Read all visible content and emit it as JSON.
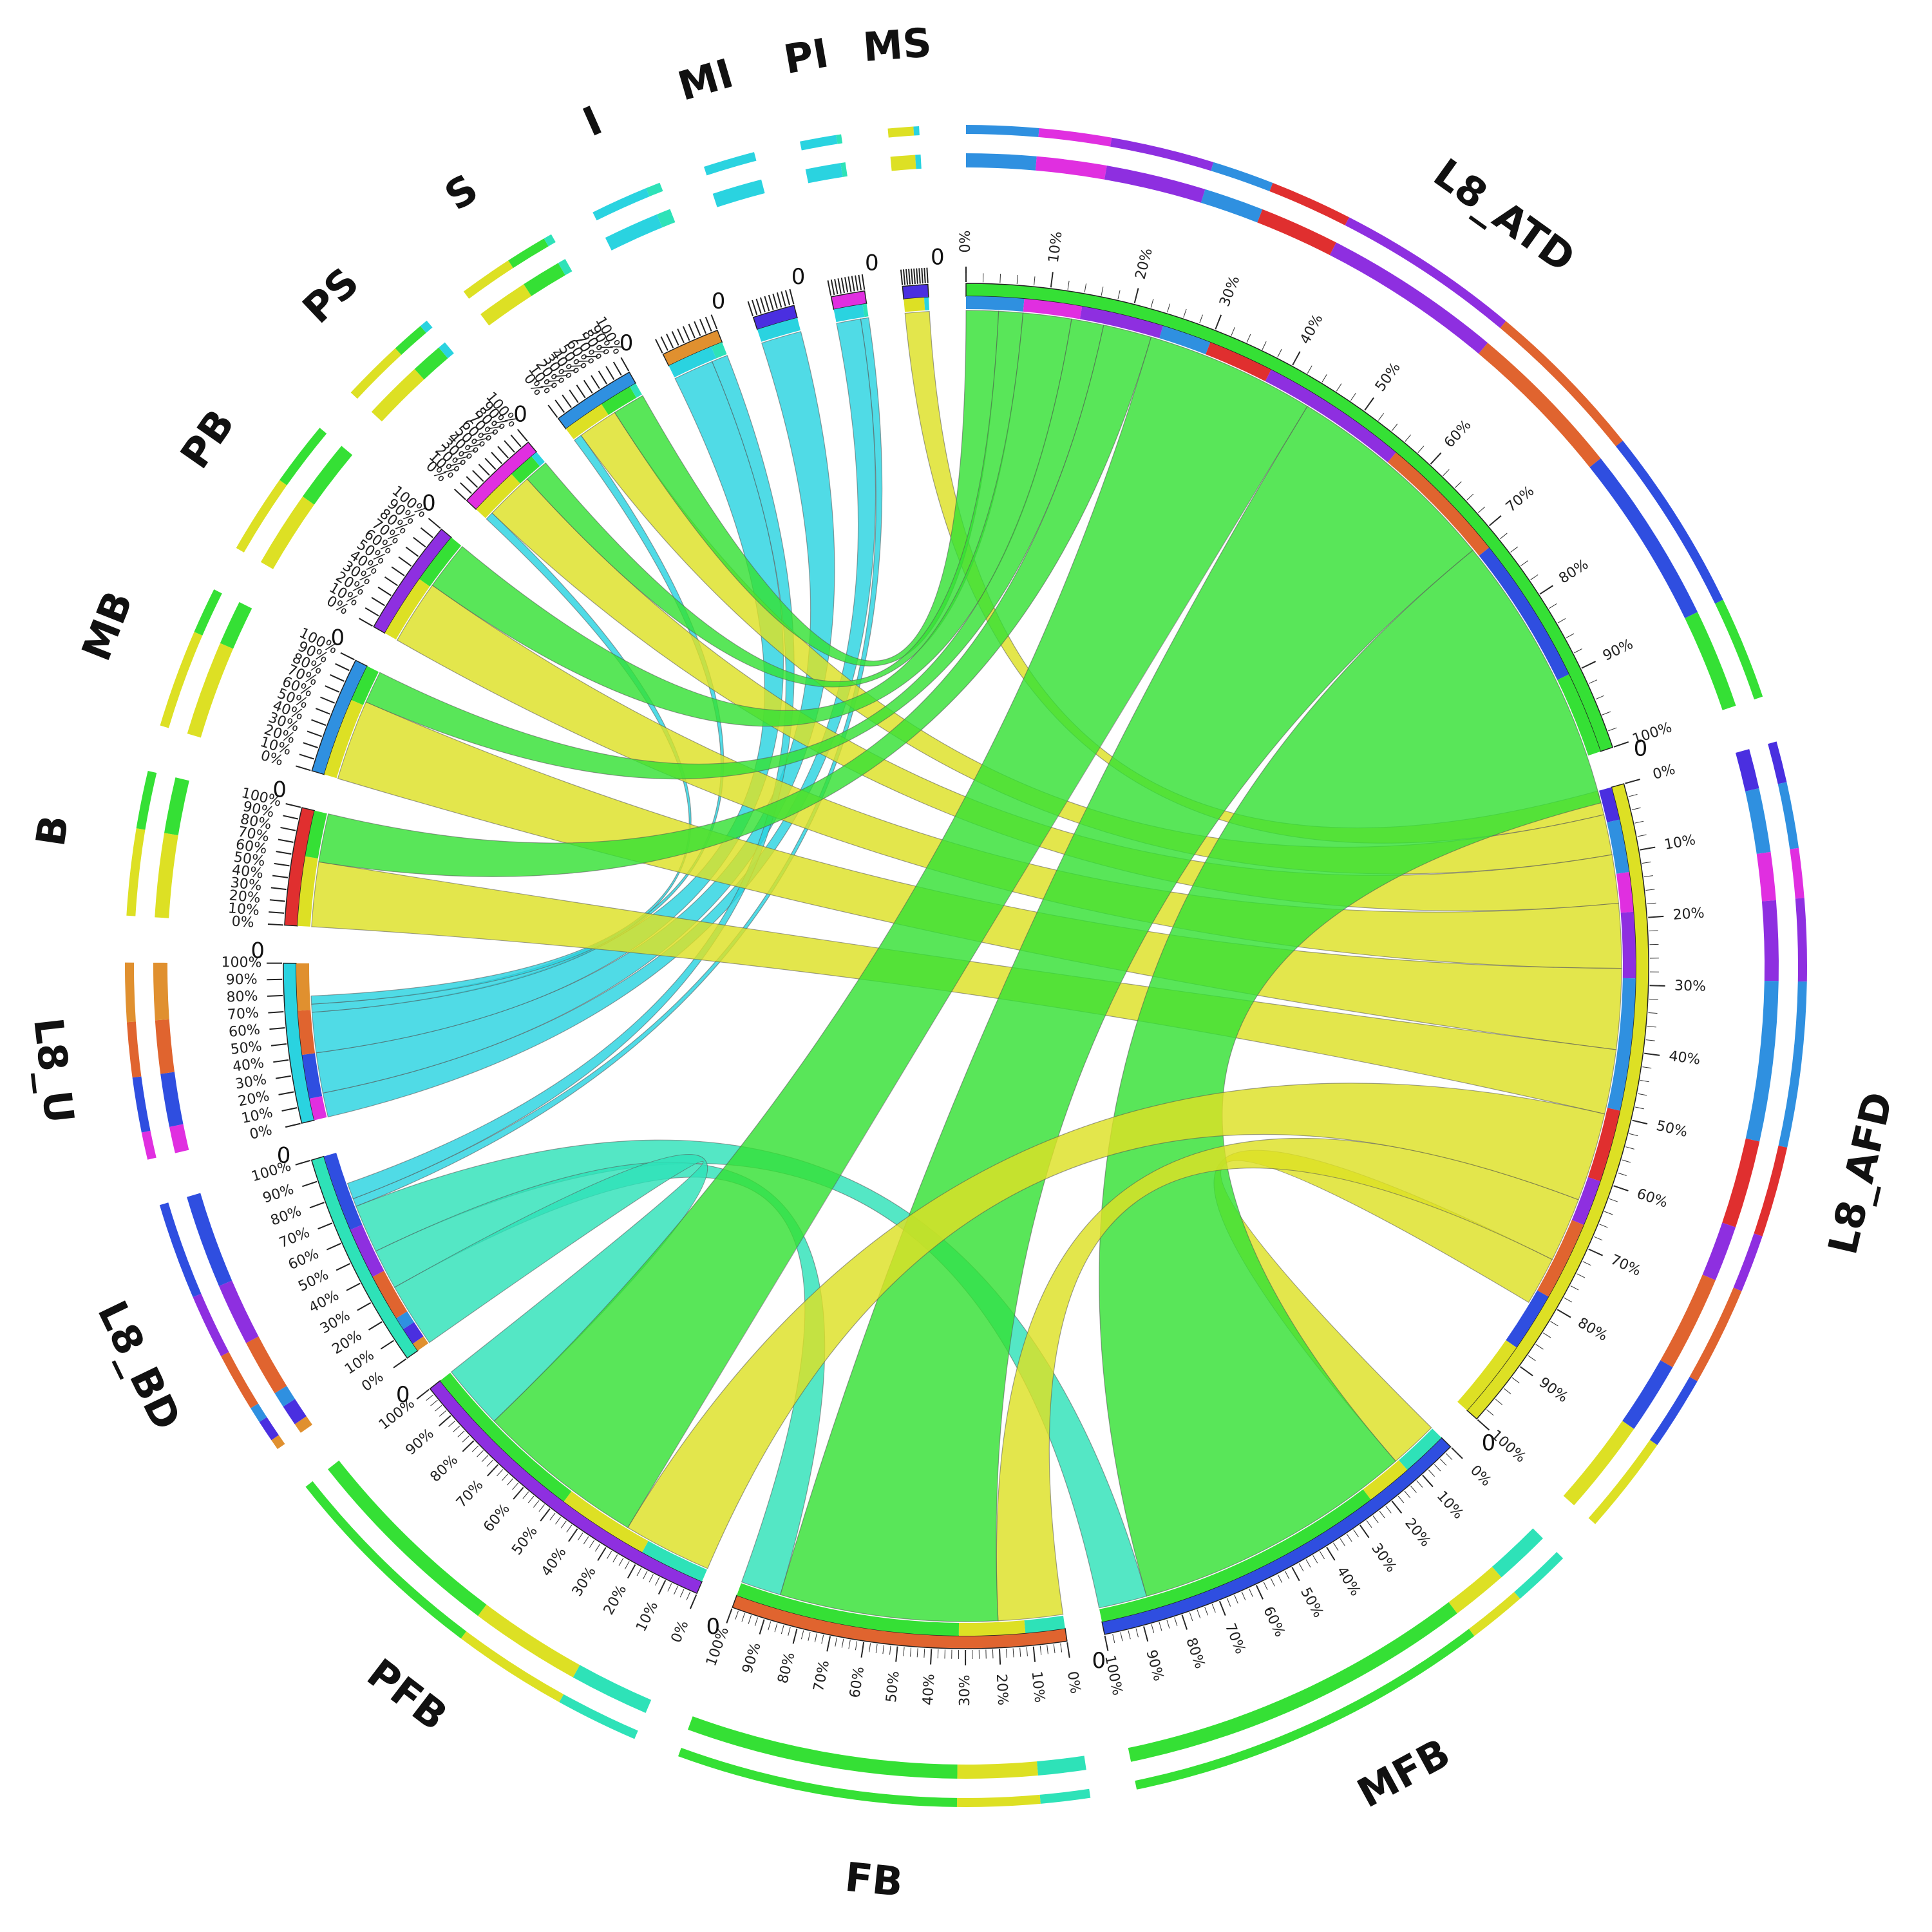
{
  "chart_data": {
    "type": "chord",
    "colors": {
      "green": "#35e035",
      "yellow": "#dde024",
      "cyan": "#2ad3e0",
      "teal": "#2ee2b8",
      "blue": "#2f4ee0",
      "purple": "#8e2fe0",
      "magenta": "#e02fe0",
      "red": "#e02f2f",
      "orange": "#e0642f",
      "skyblue": "#2f90e0",
      "amber": "#e0902f",
      "indigo": "#4a2fe0"
    },
    "tick_percentages": [
      "0%",
      "10%",
      "20%",
      "30%",
      "40%",
      "50%",
      "60%",
      "70%",
      "80%",
      "90%",
      "100%"
    ],
    "zero_label": "0",
    "segments": [
      {
        "label": "L8_ATD",
        "value": 100,
        "color": "green",
        "composition": [
          [
            "skyblue",
            7
          ],
          [
            "magenta",
            7
          ],
          [
            "purple",
            10
          ],
          [
            "skyblue",
            6
          ],
          [
            "red",
            8
          ],
          [
            "purple",
            18
          ],
          [
            "orange",
            16
          ],
          [
            "blue",
            18
          ],
          [
            "green",
            10
          ]
        ]
      },
      {
        "label": "L8_AFD",
        "value": 80,
        "color": "yellow",
        "composition": [
          [
            "indigo",
            5
          ],
          [
            "skyblue",
            8
          ],
          [
            "magenta",
            6
          ],
          [
            "purple",
            10
          ],
          [
            "skyblue",
            20
          ],
          [
            "red",
            11
          ],
          [
            "purple",
            7
          ],
          [
            "orange",
            12
          ],
          [
            "blue",
            9
          ],
          [
            "yellow",
            12
          ]
        ]
      },
      {
        "label": "MFB",
        "value": 47,
        "color": "blue",
        "composition": [
          [
            "teal",
            12
          ],
          [
            "yellow",
            12
          ],
          [
            "green",
            76
          ]
        ]
      },
      {
        "label": "FB",
        "value": 40,
        "color": "orange",
        "composition": [
          [
            "teal",
            12
          ],
          [
            "yellow",
            20
          ],
          [
            "green",
            68
          ]
        ]
      },
      {
        "label": "PFB",
        "value": 40,
        "color": "purple",
        "composition": [
          [
            "teal",
            20
          ],
          [
            "yellow",
            28
          ],
          [
            "green",
            52
          ]
        ]
      },
      {
        "label": "L8_BD",
        "value": 26,
        "color": "teal",
        "composition": [
          [
            "amber",
            4
          ],
          [
            "indigo",
            8
          ],
          [
            "skyblue",
            6
          ],
          [
            "orange",
            22
          ],
          [
            "purple",
            24
          ],
          [
            "blue",
            36
          ]
        ]
      },
      {
        "label": "L8_U",
        "value": 19,
        "color": "cyan",
        "composition": [
          [
            "magenta",
            14
          ],
          [
            "blue",
            28
          ],
          [
            "orange",
            28
          ],
          [
            "amber",
            30
          ]
        ]
      },
      {
        "label": "B",
        "value": 14,
        "color": "red",
        "composition": [
          [
            "yellow",
            60
          ],
          [
            "green",
            40
          ]
        ]
      },
      {
        "label": "MB",
        "value": 14,
        "color": "skyblue",
        "composition": [
          [
            "yellow",
            68
          ],
          [
            "green",
            32
          ]
        ]
      },
      {
        "label": "PB",
        "value": 14,
        "color": "purple",
        "composition": [
          [
            "yellow",
            55
          ],
          [
            "green",
            45
          ]
        ]
      },
      {
        "label": "PS",
        "value": 10,
        "color": "magenta",
        "composition": [
          [
            "yellow",
            60
          ],
          [
            "green",
            32
          ],
          [
            "cyan",
            8
          ]
        ]
      },
      {
        "label": "S",
        "value": 10,
        "color": "skyblue",
        "composition": [
          [
            "yellow",
            52
          ],
          [
            "green",
            40
          ],
          [
            "teal",
            8
          ]
        ]
      },
      {
        "label": "I",
        "value": 7,
        "color": "amber",
        "composition": [
          [
            "cyan",
            80
          ],
          [
            "teal",
            20
          ]
        ]
      },
      {
        "label": "MI",
        "value": 5,
        "color": "indigo",
        "composition": [
          [
            "cyan",
            100
          ]
        ]
      },
      {
        "label": "PI",
        "value": 4,
        "color": "magenta",
        "composition": [
          [
            "cyan",
            88
          ],
          [
            "teal",
            12
          ]
        ]
      },
      {
        "label": "MS",
        "value": 3,
        "color": "indigo",
        "composition": [
          [
            "yellow",
            82
          ],
          [
            "cyan",
            18
          ]
        ]
      }
    ],
    "links": [
      {
        "source": "MS",
        "target": "L8_AFD",
        "value": 3,
        "color": "yellow"
      },
      {
        "source": "PI",
        "target": "L8_BD",
        "value": 1,
        "color": "cyan"
      },
      {
        "source": "PI",
        "target": "L8_U",
        "value": 3,
        "color": "cyan"
      },
      {
        "source": "MI",
        "target": "L8_U",
        "value": 5,
        "color": "cyan"
      },
      {
        "source": "I",
        "target": "L8_U",
        "value": 5,
        "color": "cyan"
      },
      {
        "source": "I",
        "target": "L8_BD",
        "value": 2,
        "color": "cyan"
      },
      {
        "source": "S",
        "target": "L8_AFD",
        "value": 5,
        "color": "yellow"
      },
      {
        "source": "S",
        "target": "L8_ATD",
        "value": 4,
        "color": "green"
      },
      {
        "source": "S",
        "target": "L8_U",
        "value": 1,
        "color": "cyan"
      },
      {
        "source": "PS",
        "target": "L8_AFD",
        "value": 6,
        "color": "yellow"
      },
      {
        "source": "PS",
        "target": "L8_ATD",
        "value": 3,
        "color": "green"
      },
      {
        "source": "PS",
        "target": "L8_U",
        "value": 1,
        "color": "cyan"
      },
      {
        "source": "PB",
        "target": "L8_AFD",
        "value": 8,
        "color": "yellow"
      },
      {
        "source": "PB",
        "target": "L8_ATD",
        "value": 6,
        "color": "green"
      },
      {
        "source": "MB",
        "target": "L8_AFD",
        "value": 10,
        "color": "yellow"
      },
      {
        "source": "MB",
        "target": "L8_ATD",
        "value": 4,
        "color": "green"
      },
      {
        "source": "B",
        "target": "L8_AFD",
        "value": 8,
        "color": "yellow"
      },
      {
        "source": "B",
        "target": "L8_ATD",
        "value": 6,
        "color": "green"
      },
      {
        "source": "MFB",
        "target": "L8_BD",
        "value": 6,
        "color": "teal"
      },
      {
        "source": "MFB",
        "target": "L8_AFD",
        "value": 6,
        "color": "yellow"
      },
      {
        "source": "MFB",
        "target": "L8_ATD",
        "value": 35,
        "color": "green"
      },
      {
        "source": "FB",
        "target": "L8_BD",
        "value": 5,
        "color": "teal"
      },
      {
        "source": "FB",
        "target": "L8_AFD",
        "value": 8,
        "color": "yellow"
      },
      {
        "source": "FB",
        "target": "L8_ATD",
        "value": 27,
        "color": "green"
      },
      {
        "source": "PFB",
        "target": "L8_BD",
        "value": 8,
        "color": "teal"
      },
      {
        "source": "PFB",
        "target": "L8_AFD",
        "value": 11,
        "color": "yellow"
      },
      {
        "source": "PFB",
        "target": "L8_ATD",
        "value": 21,
        "color": "green"
      }
    ]
  }
}
